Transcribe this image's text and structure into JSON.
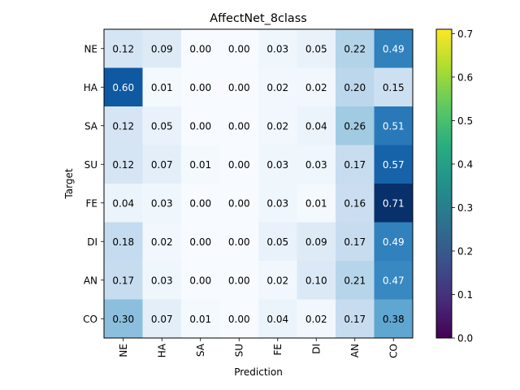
{
  "chart_data": {
    "type": "heatmap",
    "title": "AffectNet_8class",
    "xlabel": "Prediction",
    "ylabel": "Target",
    "x_categories": [
      "NE",
      "HA",
      "SA",
      "SU",
      "FE",
      "DI",
      "AN",
      "CO"
    ],
    "y_categories": [
      "NE",
      "HA",
      "SA",
      "SU",
      "FE",
      "DI",
      "AN",
      "CO"
    ],
    "values": [
      [
        0.12,
        0.09,
        0.0,
        0.0,
        0.03,
        0.05,
        0.22,
        0.49
      ],
      [
        0.6,
        0.01,
        0.0,
        0.0,
        0.02,
        0.02,
        0.2,
        0.15
      ],
      [
        0.12,
        0.05,
        0.0,
        0.0,
        0.02,
        0.04,
        0.26,
        0.51
      ],
      [
        0.12,
        0.07,
        0.01,
        0.0,
        0.03,
        0.03,
        0.17,
        0.57
      ],
      [
        0.04,
        0.03,
        0.0,
        0.0,
        0.03,
        0.01,
        0.16,
        0.71
      ],
      [
        0.18,
        0.02,
        0.0,
        0.0,
        0.05,
        0.09,
        0.17,
        0.49
      ],
      [
        0.17,
        0.03,
        0.0,
        0.0,
        0.02,
        0.1,
        0.21,
        0.47
      ],
      [
        0.3,
        0.07,
        0.01,
        0.0,
        0.04,
        0.02,
        0.17,
        0.38
      ]
    ],
    "value_format": "2 decimals",
    "heatmap_colormap": "Blues",
    "colorbar": {
      "colormap": "viridis",
      "range": [
        0.0,
        0.71
      ],
      "ticks": [
        "0.0",
        "0.1",
        "0.2",
        "0.3",
        "0.4",
        "0.5",
        "0.6",
        "0.7"
      ],
      "tick_values": [
        0.0,
        0.1,
        0.2,
        0.3,
        0.4,
        0.5,
        0.6,
        0.7
      ]
    },
    "grid": false
  }
}
